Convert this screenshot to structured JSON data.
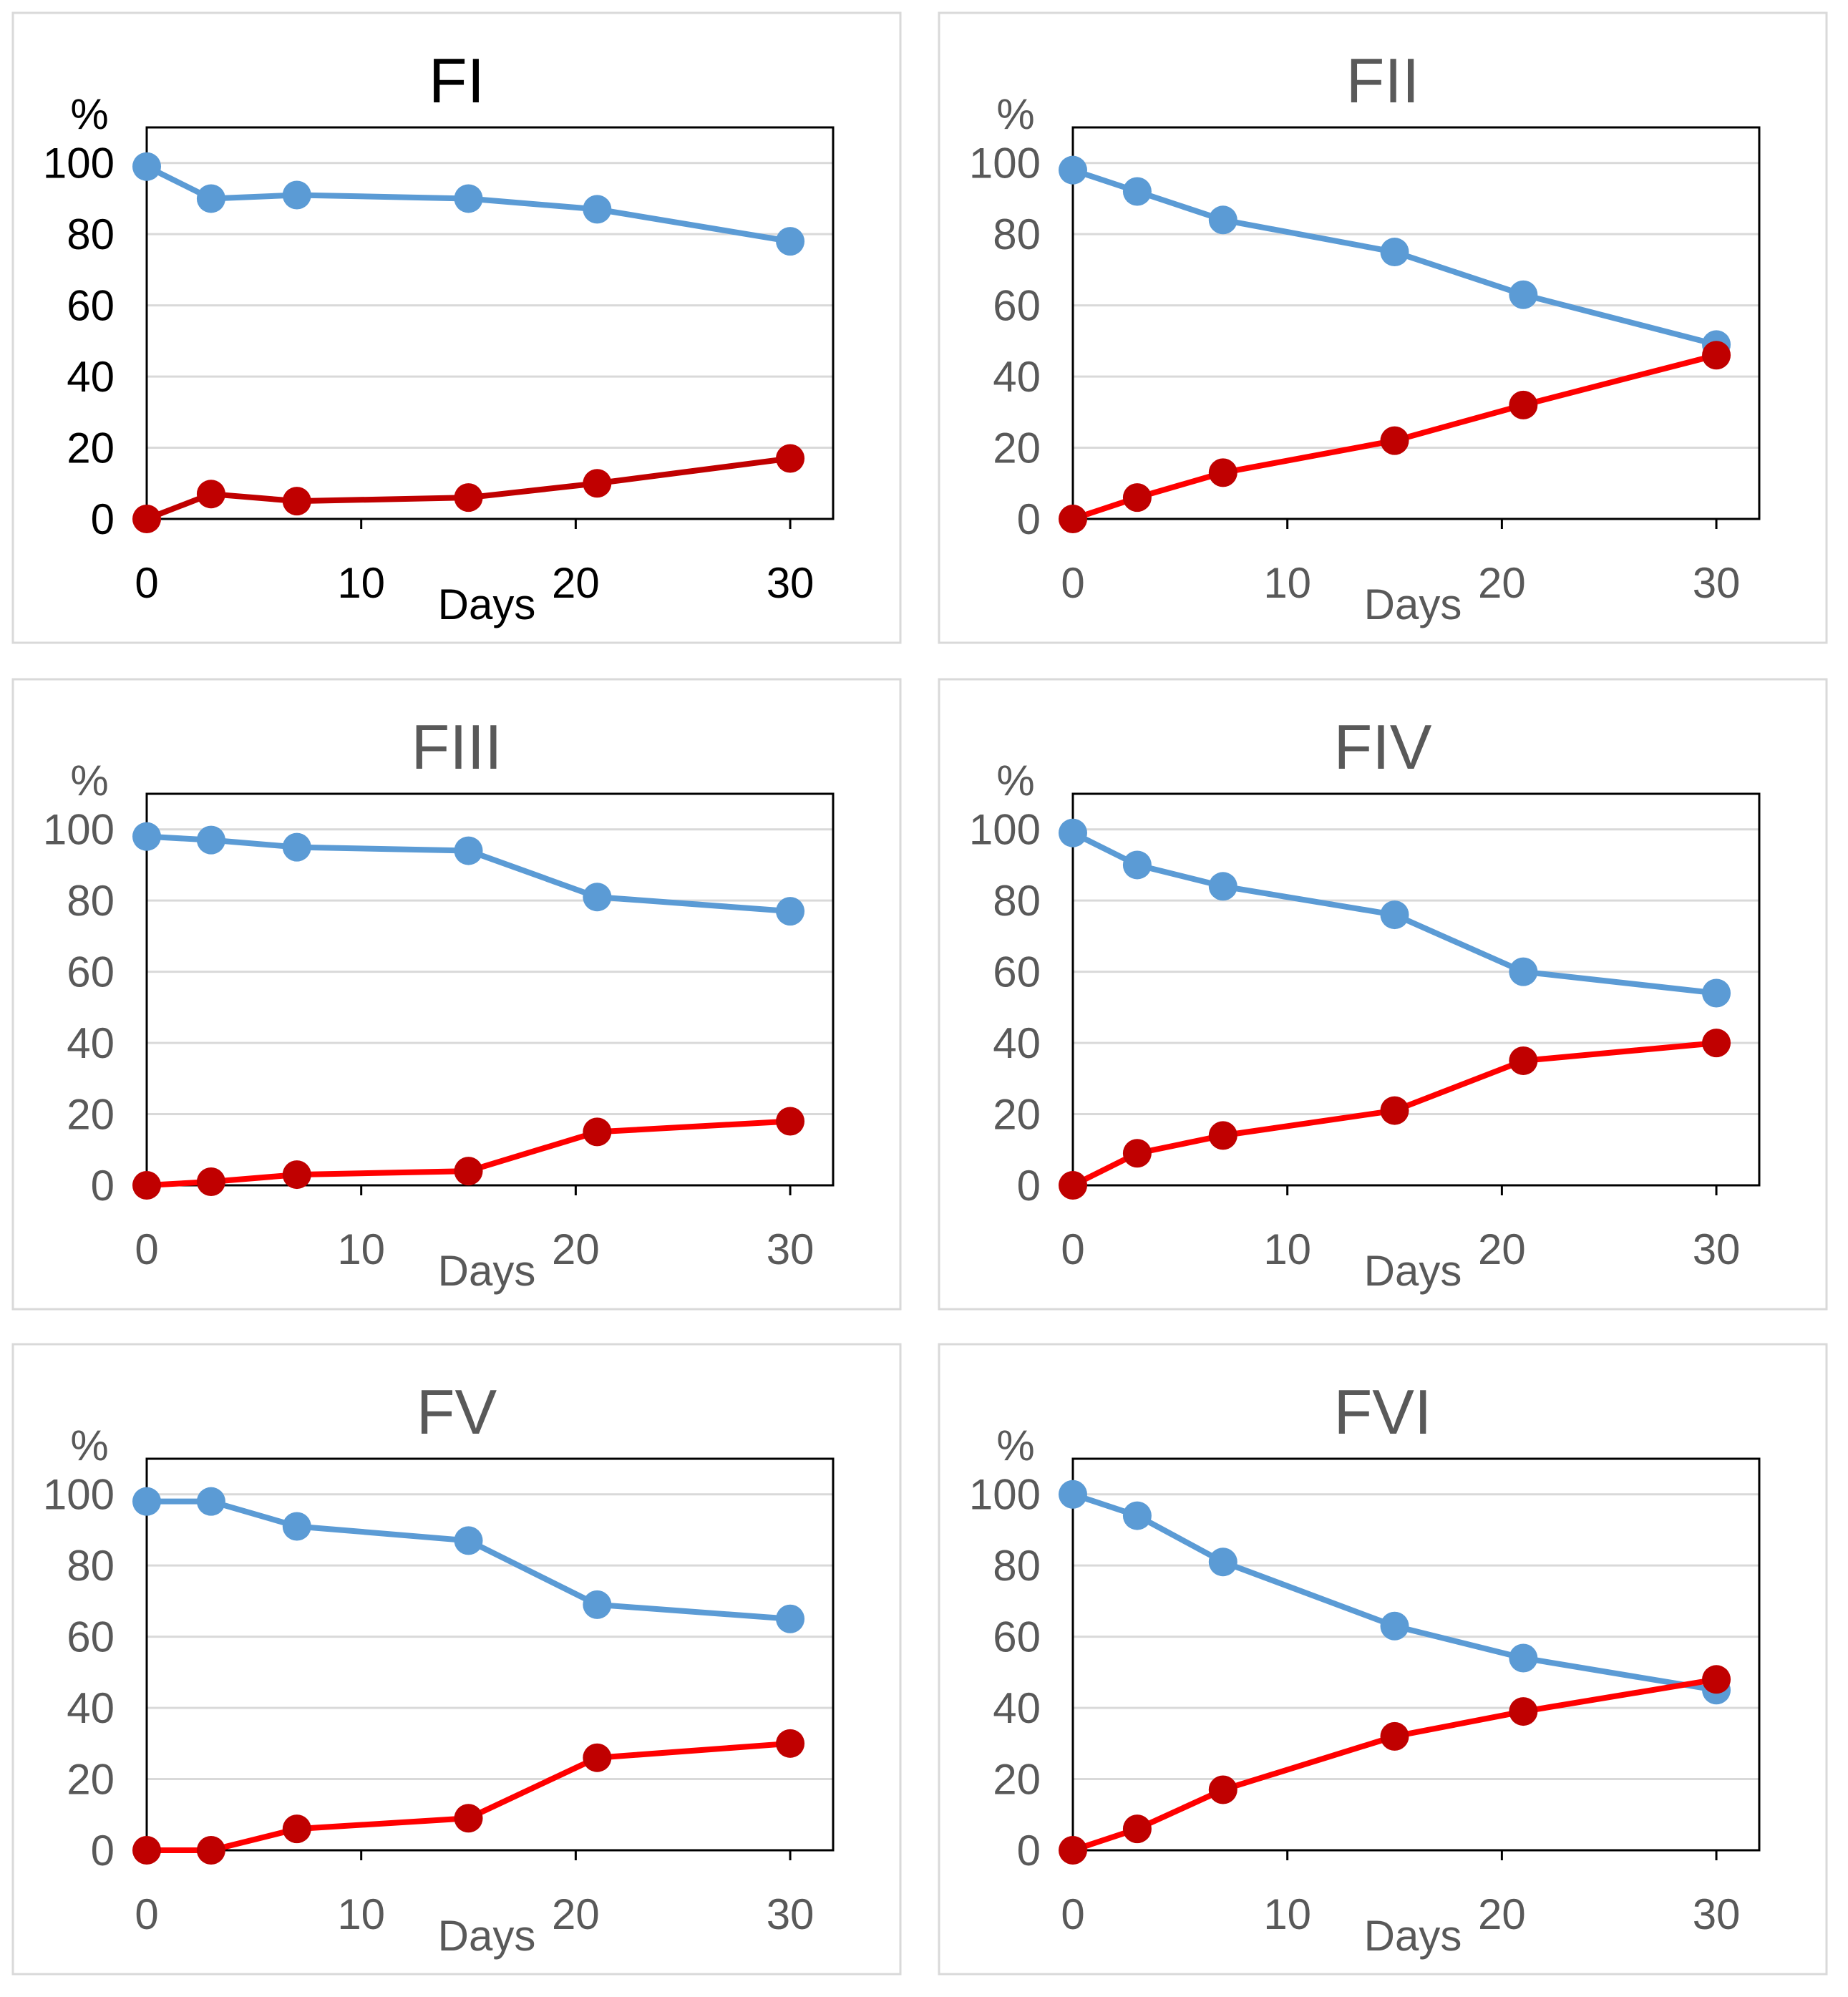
{
  "chart_data": [
    {
      "type": "line",
      "title": "FI",
      "xlabel": "Days",
      "ylabel": "%",
      "x": [
        0,
        3,
        7,
        15,
        21,
        30
      ],
      "xticks": [
        0,
        10,
        20,
        30
      ],
      "yticks": [
        0,
        20,
        40,
        60,
        80,
        100
      ],
      "xlim": [
        0,
        32
      ],
      "ylim": [
        0,
        110
      ],
      "grid": true,
      "series": [
        {
          "name": "blue",
          "color": "#5B9BD5",
          "values": [
            99,
            90,
            91,
            90,
            87,
            78
          ]
        },
        {
          "name": "red",
          "color": "#C00000",
          "values": [
            0,
            7,
            5,
            6,
            10,
            17
          ]
        }
      ]
    },
    {
      "type": "line",
      "title": "FII",
      "xlabel": "Days",
      "ylabel": "%",
      "x": [
        0,
        3,
        7,
        15,
        21,
        30
      ],
      "xticks": [
        0,
        10,
        20,
        30
      ],
      "yticks": [
        0,
        20,
        40,
        60,
        80,
        100
      ],
      "xlim": [
        0,
        32
      ],
      "ylim": [
        0,
        110
      ],
      "grid": true,
      "series": [
        {
          "name": "blue",
          "color": "#5B9BD5",
          "values": [
            98,
            92,
            84,
            75,
            63,
            49
          ]
        },
        {
          "name": "red",
          "color": "#FF0000",
          "values": [
            0,
            6,
            13,
            22,
            32,
            46
          ]
        }
      ]
    },
    {
      "type": "line",
      "title": "FIII",
      "xlabel": "Days",
      "ylabel": "%",
      "x": [
        0,
        3,
        7,
        15,
        21,
        30
      ],
      "xticks": [
        0,
        10,
        20,
        30
      ],
      "yticks": [
        0,
        20,
        40,
        60,
        80,
        100
      ],
      "xlim": [
        0,
        32
      ],
      "ylim": [
        0,
        110
      ],
      "grid": true,
      "series": [
        {
          "name": "blue",
          "color": "#5B9BD5",
          "values": [
            98,
            97,
            95,
            94,
            81,
            77
          ]
        },
        {
          "name": "red",
          "color": "#FF0000",
          "values": [
            0,
            1,
            3,
            4,
            15,
            18
          ]
        }
      ]
    },
    {
      "type": "line",
      "title": "FIV",
      "xlabel": "Days",
      "ylabel": "%",
      "x": [
        0,
        3,
        7,
        15,
        21,
        30
      ],
      "xticks": [
        0,
        10,
        20,
        30
      ],
      "yticks": [
        0,
        20,
        40,
        60,
        80,
        100
      ],
      "xlim": [
        0,
        32
      ],
      "ylim": [
        0,
        110
      ],
      "grid": true,
      "series": [
        {
          "name": "blue",
          "color": "#5B9BD5",
          "values": [
            99,
            90,
            84,
            76,
            60,
            54
          ]
        },
        {
          "name": "red",
          "color": "#FF0000",
          "values": [
            0,
            9,
            14,
            21,
            35,
            40
          ]
        }
      ]
    },
    {
      "type": "line",
      "title": "FV",
      "xlabel": "Days",
      "ylabel": "%",
      "x": [
        0,
        3,
        7,
        15,
        21,
        30
      ],
      "xticks": [
        0,
        10,
        20,
        30
      ],
      "yticks": [
        0,
        20,
        40,
        60,
        80,
        100
      ],
      "xlim": [
        0,
        32
      ],
      "ylim": [
        0,
        110
      ],
      "grid": true,
      "series": [
        {
          "name": "blue",
          "color": "#5B9BD5",
          "values": [
            98,
            98,
            91,
            87,
            69,
            65
          ]
        },
        {
          "name": "red",
          "color": "#FF0000",
          "values": [
            0,
            0,
            6,
            9,
            26,
            30
          ]
        }
      ]
    },
    {
      "type": "line",
      "title": "FVI",
      "xlabel": "Days",
      "ylabel": "%",
      "x": [
        0,
        3,
        7,
        15,
        21,
        30
      ],
      "xticks": [
        0,
        10,
        20,
        30
      ],
      "yticks": [
        0,
        20,
        40,
        60,
        80,
        100
      ],
      "xlim": [
        0,
        32
      ],
      "ylim": [
        0,
        110
      ],
      "grid": true,
      "series": [
        {
          "name": "blue",
          "color": "#5B9BD5",
          "values": [
            100,
            94,
            81,
            63,
            54,
            45
          ]
        },
        {
          "name": "red",
          "color": "#FF0000",
          "values": [
            0,
            6,
            17,
            32,
            39,
            48
          ]
        }
      ]
    }
  ],
  "colors": {
    "marker_red": "#C00000",
    "title_first": "#000000",
    "text": "#595959"
  }
}
